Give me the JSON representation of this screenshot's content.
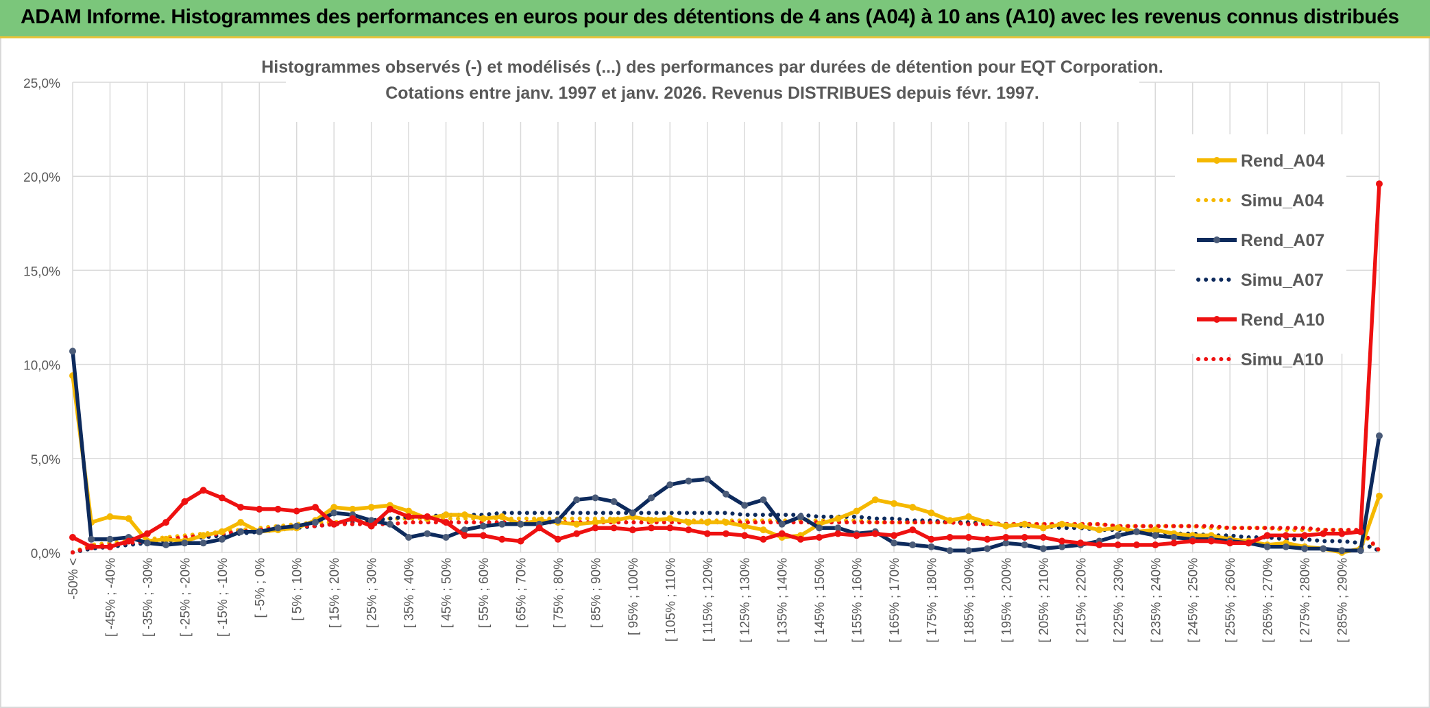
{
  "banner": {
    "title": "ADAM Informe. Histogrammes des performances en euros pour des détentions de 4 ans (A04) à 10 ans (A10) avec les revenus connus distribués"
  },
  "chart_data": {
    "type": "line",
    "title_line1": "Histogrammes observés (-) et modélisés (...) des performances par durées de détention pour EQT Corporation.",
    "title_line2": "Cotations entre janv. 1997 et janv. 2026. Revenus DISTRIBUES depuis févr. 1997.",
    "ylim": [
      0,
      25
    ],
    "yticks": [
      0,
      5,
      10,
      15,
      20,
      25
    ],
    "ytick_labels": [
      "0,0%",
      "5,0%",
      "10,0%",
      "15,0%",
      "20,0%",
      "25,0%"
    ],
    "x_tick_labels": [
      "-50% <",
      "[ -45% ; -40%",
      "[ -35% ; -30%",
      "[ -25% ; -20%",
      "[ -15% ; -10%",
      "[ -5% ; 0%",
      "[ 5% ; 10%",
      "[ 15% ; 20%",
      "[ 25% ; 30%",
      "[ 35% ; 40%",
      "[ 45% ; 50%",
      "[ 55% ; 60%",
      "[ 65% ; 70%",
      "[ 75% ; 80%",
      "[ 85% ; 90%",
      "[ 95% ; 100%",
      "[ 105% ; 110%",
      "[ 115% ; 120%",
      "[ 125% ; 130%",
      "[ 135% ; 140%",
      "[ 145% ; 150%",
      "[ 155% ; 160%",
      "[ 165% ; 170%",
      "[ 175% ; 180%",
      "[ 185% ; 190%",
      "[ 195% ; 200%",
      "[ 205% ; 210%",
      "[ 215% ; 220%",
      "[ 225% ; 230%",
      "[ 235% ; 240%",
      "[ 245% ; 250%",
      "[ 255% ; 260%",
      "[ 265% ; 270%",
      "[ 275% ; 280%",
      "[ 285% ; 290%"
    ],
    "num_bins": 71,
    "series": [
      {
        "name": "Rend_A04",
        "color": "#f5b800",
        "style": "solid",
        "values": [
          9.4,
          1.6,
          1.9,
          1.8,
          0.6,
          0.7,
          0.6,
          0.9,
          1.1,
          1.6,
          1.1,
          1.2,
          1.3,
          1.7,
          2.4,
          2.3,
          2.4,
          2.5,
          2.2,
          1.8,
          2.0,
          2.0,
          1.8,
          1.9,
          1.5,
          1.7,
          1.6,
          1.5,
          1.6,
          1.7,
          1.9,
          1.7,
          1.8,
          1.6,
          1.6,
          1.6,
          1.4,
          1.2,
          0.8,
          0.9,
          1.5,
          1.8,
          2.2,
          2.8,
          2.6,
          2.4,
          2.1,
          1.7,
          1.9,
          1.6,
          1.4,
          1.5,
          1.3,
          1.5,
          1.4,
          1.2,
          1.3,
          1.1,
          1.2,
          1.0,
          0.9,
          0.9,
          0.7,
          0.6,
          0.4,
          0.5,
          0.3,
          0.2,
          0.0,
          0.2,
          3.0
        ]
      },
      {
        "name": "Simu_A04",
        "color": "#f5b800",
        "style": "dotted",
        "values": [
          0.0,
          0.4,
          0.5,
          0.6,
          0.7,
          0.8,
          0.9,
          1.0,
          1.1,
          1.2,
          1.3,
          1.4,
          1.5,
          1.6,
          1.6,
          1.7,
          1.7,
          1.8,
          1.8,
          1.8,
          1.8,
          1.8,
          1.8,
          1.8,
          1.8,
          1.8,
          1.8,
          1.8,
          1.8,
          1.8,
          1.8,
          1.8,
          1.7,
          1.7,
          1.7,
          1.7,
          1.7,
          1.7,
          1.7,
          1.7,
          1.7,
          1.7,
          1.7,
          1.6,
          1.6,
          1.6,
          1.6,
          1.6,
          1.6,
          1.6,
          1.5,
          1.5,
          1.5,
          1.5,
          1.5,
          1.5,
          1.4,
          1.4,
          1.4,
          1.4,
          1.4,
          1.3,
          1.3,
          1.3,
          1.3,
          1.2,
          1.2,
          1.2,
          1.2,
          1.1,
          0.1
        ]
      },
      {
        "name": "Rend_A07",
        "color": "#0d2a5c",
        "style": "solid",
        "values": [
          10.7,
          0.7,
          0.7,
          0.8,
          0.5,
          0.4,
          0.5,
          0.5,
          0.7,
          1.1,
          1.1,
          1.3,
          1.4,
          1.6,
          2.1,
          2.0,
          1.7,
          1.5,
          0.8,
          1.0,
          0.8,
          1.2,
          1.4,
          1.5,
          1.5,
          1.5,
          1.7,
          2.8,
          2.9,
          2.7,
          2.1,
          2.9,
          3.6,
          3.8,
          3.9,
          3.1,
          2.5,
          2.8,
          1.5,
          1.9,
          1.3,
          1.3,
          1.0,
          1.1,
          0.5,
          0.4,
          0.3,
          0.1,
          0.1,
          0.2,
          0.5,
          0.4,
          0.2,
          0.3,
          0.4,
          0.6,
          0.9,
          1.1,
          0.9,
          0.8,
          0.7,
          0.7,
          0.6,
          0.5,
          0.3,
          0.3,
          0.2,
          0.2,
          0.1,
          0.1,
          6.2
        ]
      },
      {
        "name": "Simu_A07",
        "color": "#0d2a5c",
        "style": "dotted",
        "values": [
          0.0,
          0.2,
          0.3,
          0.4,
          0.5,
          0.6,
          0.7,
          0.8,
          0.9,
          1.0,
          1.1,
          1.2,
          1.3,
          1.4,
          1.5,
          1.6,
          1.7,
          1.8,
          1.9,
          1.9,
          2.0,
          2.0,
          2.0,
          2.1,
          2.1,
          2.1,
          2.1,
          2.1,
          2.1,
          2.1,
          2.1,
          2.1,
          2.1,
          2.1,
          2.1,
          2.1,
          2.0,
          2.0,
          2.0,
          2.0,
          1.9,
          1.9,
          1.9,
          1.8,
          1.8,
          1.7,
          1.7,
          1.6,
          1.6,
          1.5,
          1.5,
          1.4,
          1.4,
          1.3,
          1.3,
          1.2,
          1.2,
          1.1,
          1.1,
          1.0,
          1.0,
          0.9,
          0.9,
          0.8,
          0.8,
          0.7,
          0.7,
          0.6,
          0.6,
          0.5,
          0.1
        ]
      },
      {
        "name": "Rend_A10",
        "color": "#ee1111",
        "style": "solid",
        "values": [
          0.8,
          0.3,
          0.3,
          0.6,
          1.0,
          1.6,
          2.7,
          3.3,
          2.9,
          2.4,
          2.3,
          2.3,
          2.2,
          2.4,
          1.5,
          1.8,
          1.4,
          2.3,
          1.9,
          1.9,
          1.6,
          0.9,
          0.9,
          0.7,
          0.6,
          1.3,
          0.7,
          1.0,
          1.3,
          1.3,
          1.2,
          1.3,
          1.3,
          1.2,
          1.0,
          1.0,
          0.9,
          0.7,
          1.0,
          0.7,
          0.8,
          1.0,
          0.9,
          1.0,
          0.9,
          1.2,
          0.7,
          0.8,
          0.8,
          0.7,
          0.8,
          0.8,
          0.8,
          0.6,
          0.5,
          0.4,
          0.4,
          0.4,
          0.4,
          0.5,
          0.6,
          0.6,
          0.5,
          0.5,
          0.9,
          0.9,
          0.9,
          1.0,
          1.0,
          1.1,
          19.6
        ]
      },
      {
        "name": "Simu_A10",
        "color": "#ee1111",
        "style": "dotted",
        "values": [
          0.0,
          0.3,
          0.4,
          0.5,
          0.6,
          0.7,
          0.8,
          0.9,
          1.0,
          1.1,
          1.2,
          1.3,
          1.4,
          1.4,
          1.5,
          1.5,
          1.5,
          1.5,
          1.6,
          1.6,
          1.6,
          1.6,
          1.6,
          1.6,
          1.6,
          1.6,
          1.6,
          1.6,
          1.6,
          1.6,
          1.6,
          1.6,
          1.6,
          1.6,
          1.6,
          1.6,
          1.6,
          1.6,
          1.6,
          1.6,
          1.6,
          1.6,
          1.6,
          1.6,
          1.6,
          1.6,
          1.6,
          1.6,
          1.5,
          1.5,
          1.5,
          1.5,
          1.5,
          1.5,
          1.5,
          1.5,
          1.4,
          1.4,
          1.4,
          1.4,
          1.4,
          1.4,
          1.3,
          1.3,
          1.3,
          1.3,
          1.3,
          1.2,
          1.2,
          1.2,
          0.1
        ]
      }
    ],
    "legend_position": "right"
  }
}
